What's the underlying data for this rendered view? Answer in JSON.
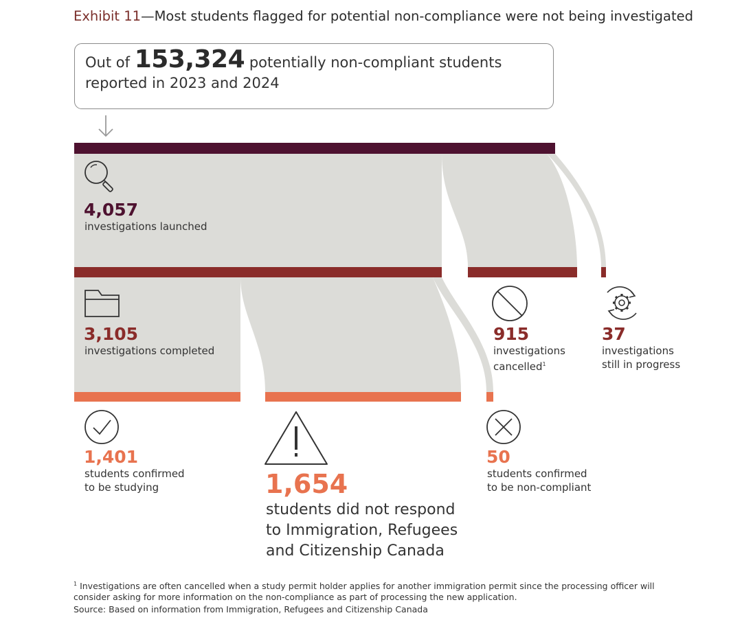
{
  "title": {
    "exhibit": "Exhibit 11",
    "text": "—Most students flagged for potential non-compliance were not being investigated"
  },
  "callout": {
    "prefix": "Out of",
    "total": "153,324",
    "suffix": "potentially non-compliant students",
    "line2": "reported in 2023 and 2024"
  },
  "stages": {
    "launched": {
      "value": "4,057",
      "label": "investigations launched"
    },
    "completed": {
      "value": "3,105",
      "label": "investigations completed"
    },
    "cancelled": {
      "value": "915",
      "label_line1": "investigations",
      "label_line2": "cancelled",
      "footnote_mark": "1"
    },
    "in_progress": {
      "value": "37",
      "label_line1": "investigations",
      "label_line2": "still in progress"
    },
    "studying": {
      "value": "1,401",
      "label_line1": "students confirmed",
      "label_line2": "to be studying"
    },
    "no_response": {
      "value": "1,654",
      "label_line1": "students did not respond",
      "label_line2": "to Immigration, Refugees",
      "label_line3": "and Citizenship Canada"
    },
    "non_compliant": {
      "value": "50",
      "label_line1": "students confirmed",
      "label_line2": "to be non-compliant"
    }
  },
  "footnote": {
    "mark": "1",
    "line1": "Investigations are often cancelled when a study permit holder applies for another immigration permit since the processing officer will",
    "line2": "consider asking for more information on the non-compliance as part of processing the new application."
  },
  "source": "Source: Based on information from Immigration, Refugees and Citizenship Canada",
  "colors": {
    "launched": "#4e1230",
    "middle": "#8a2c2a",
    "outcome": "#e8734f",
    "flow": "#dcdcd8"
  },
  "icons": [
    "arrow-down-icon",
    "magnifier-icon",
    "folder-icon",
    "prohibited-icon",
    "gear-cycle-icon",
    "checkmark-icon",
    "warning-icon",
    "x-circle-icon"
  ]
}
